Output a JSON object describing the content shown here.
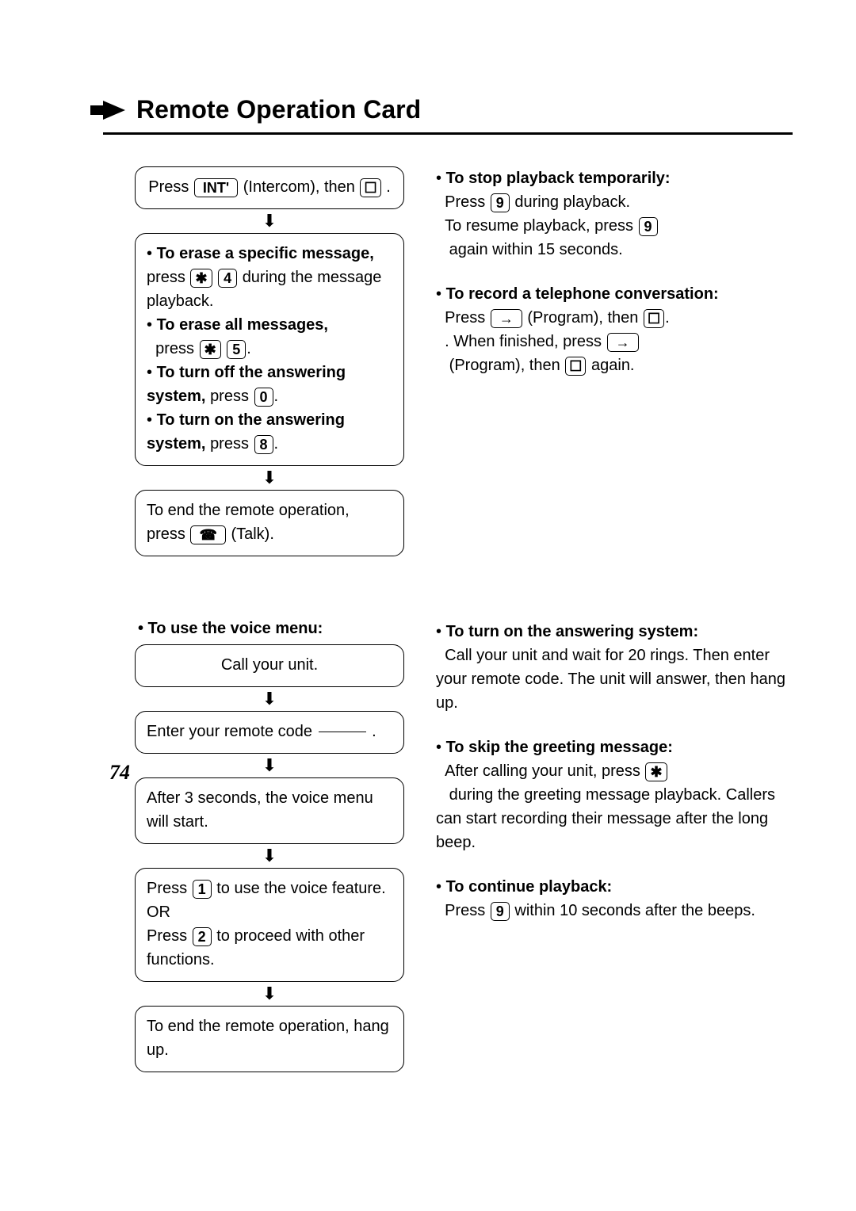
{
  "title": "Remote Operation Card",
  "page_number": "74",
  "keys": {
    "int": "INT'",
    "phone": "☐",
    "star": "✱",
    "four": "4",
    "five": "5",
    "zero": "0",
    "eight": "8",
    "nine": "9",
    "one": "1",
    "two": "2",
    "talk": "☎",
    "program": "→"
  },
  "top_left": {
    "step1_before": "Press ",
    "step1_mid": " (Intercom), then ",
    "step1_end": ".",
    "erase_specific_bold": "To erase a specific message,",
    "erase_specific_rest_a": "press ",
    "erase_specific_rest_b": " during the message playback.",
    "erase_all_bold": "To erase all messages,",
    "erase_all_rest": "press ",
    "turn_off_bold_a": "To turn off the answering system,",
    "turn_off_rest": " press ",
    "turn_on_bold_a": "To turn on the answering system,",
    "turn_on_rest": " press ",
    "end_a": "To end the remote operation, press ",
    "end_b": " (Talk)."
  },
  "top_right": {
    "stop_bold": "To stop playback temporarily:",
    "stop_a": "Press ",
    "stop_b": " during playback.",
    "stop_c": "To resume playback, press ",
    "stop_d": " again within 15 seconds.",
    "record_bold": "To record a telephone conversation:",
    "record_a": "Press ",
    "record_b": " (Program), then ",
    "record_c": ". When finished, press ",
    "record_d": " (Program), then ",
    "record_e": " again."
  },
  "bottom_left": {
    "heading": "• To use the voice menu:",
    "b1": "Call your unit.",
    "b2_a": "Enter your remote code ",
    "b2_b": " .",
    "b3": "After 3 seconds, the voice menu will start.",
    "b4_a": "Press ",
    "b4_b": " to use the voice feature.",
    "b4_or": "OR",
    "b4_c": "Press ",
    "b4_d": " to proceed with other functions.",
    "b5": "To end the remote operation, hang up."
  },
  "bottom_right": {
    "r1_bold": "To turn on the answering system:",
    "r1_body": "Call your unit and wait for 20 rings. Then enter your remote code. The unit will answer, then hang up.",
    "r2_bold": "To skip the greeting message:",
    "r2_a": "After calling your unit, press ",
    "r2_b": " during the greeting message playback. Callers can start recording their message after the long beep.",
    "r3_bold": "To continue playback:",
    "r3_a": "Press ",
    "r3_b": " within 10 seconds after the beeps."
  }
}
